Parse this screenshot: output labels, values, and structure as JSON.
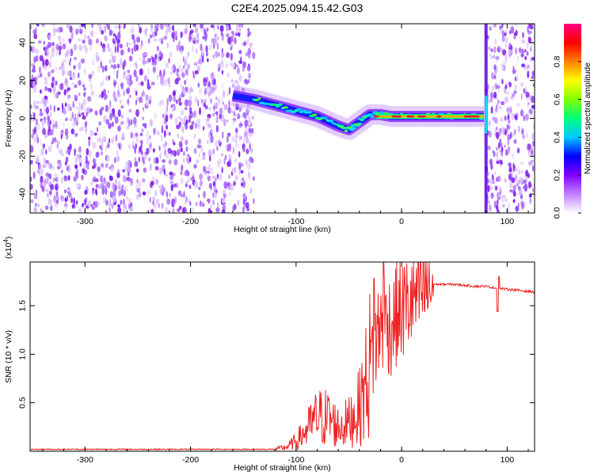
{
  "title": "C2E4.2025.094.15.42.G03",
  "chart_data": [
    {
      "type": "heatmap",
      "xlabel": "Height of straight line (km)",
      "ylabel": "Frequency (Hz)",
      "xlim": [
        -352,
        126
      ],
      "ylim": [
        -50,
        50
      ],
      "x_ticks": [
        -300,
        -200,
        -100,
        0,
        100
      ],
      "x_tick_labels": [
        "-300",
        "-200",
        "-100",
        "0",
        "100"
      ],
      "y_ticks": [
        -40,
        -20,
        0,
        20,
        40
      ],
      "y_tick_labels": [
        "-40",
        "-20",
        "0",
        "20",
        "40"
      ],
      "colorbar": {
        "label": "Normalized spectral amplitude",
        "range": [
          0,
          1
        ],
        "ticks": [
          0.0,
          0.2,
          0.4,
          0.6,
          0.8
        ],
        "tick_labels": [
          "0.0",
          "0.2",
          "0.4",
          "0.6",
          "0.8"
        ],
        "colors": [
          "#ffffff",
          "#c080ff",
          "#8000ff",
          "#0000ff",
          "#00c8ff",
          "#00ff80",
          "#80ff00",
          "#ffff00",
          "#ff8000",
          "#ff0000",
          "#ff0080"
        ]
      },
      "noise_regions": [
        [
          -352,
          -140
        ],
        [
          80,
          126
        ]
      ],
      "ridge": [
        {
          "x": -160,
          "y": 12
        },
        {
          "x": -140,
          "y": 10
        },
        {
          "x": -120,
          "y": 7
        },
        {
          "x": -100,
          "y": 4
        },
        {
          "x": -80,
          "y": 1
        },
        {
          "x": -60,
          "y": -4
        },
        {
          "x": -50,
          "y": -6
        },
        {
          "x": -40,
          "y": -2
        },
        {
          "x": -30,
          "y": 2
        },
        {
          "x": -20,
          "y": 2
        },
        {
          "x": -10,
          "y": 1
        },
        {
          "x": 0,
          "y": 1
        },
        {
          "x": 20,
          "y": 1
        },
        {
          "x": 40,
          "y": 1
        },
        {
          "x": 60,
          "y": 1
        },
        {
          "x": 78,
          "y": 1
        }
      ],
      "vertical_streak_x": 80,
      "grid": false
    },
    {
      "type": "line",
      "xlabel": "Height of straight line (km)",
      "ylabel": "SNR (10 * v/v)",
      "y_multiplier_label": "(x10",
      "y_multiplier_exp": "4",
      "xlim": [
        -352,
        126
      ],
      "ylim": [
        0,
        1.95
      ],
      "x_ticks": [
        -300,
        -200,
        -100,
        0,
        100
      ],
      "x_tick_labels": [
        "-300",
        "-200",
        "-100",
        "0",
        "100"
      ],
      "y_ticks": [
        0.5,
        1.0,
        1.5
      ],
      "y_tick_labels": [
        "0.5",
        "1.0",
        "1.5"
      ],
      "color": "#ee2222",
      "series": [
        {
          "x": [
            -352,
            -300,
            -250,
            -200,
            -150,
            -120,
            -110,
            -100,
            -90,
            -80,
            -70,
            -60,
            -50,
            -40,
            -35,
            -30,
            -25,
            -20,
            -15,
            -10,
            -5,
            0,
            5,
            10,
            15,
            20,
            25,
            30,
            35,
            40,
            50,
            60,
            70,
            80,
            90,
            100,
            110,
            126
          ],
          "values": [
            0.02,
            0.02,
            0.02,
            0.02,
            0.02,
            0.02,
            0.04,
            0.1,
            0.22,
            0.35,
            0.35,
            0.25,
            0.3,
            0.45,
            0.65,
            0.9,
            1.1,
            1.3,
            1.35,
            1.3,
            1.4,
            1.45,
            1.5,
            1.55,
            1.6,
            1.65,
            1.68,
            1.72,
            1.72,
            1.72,
            1.72,
            1.71,
            1.7,
            1.7,
            1.68,
            1.67,
            1.66,
            1.64
          ]
        }
      ],
      "peaks": [
        {
          "x": -17,
          "y": 1.95
        },
        {
          "x": -26,
          "y": 1.78
        },
        {
          "x": 92,
          "y": 1.8
        }
      ],
      "dip": {
        "x": 91,
        "y": 1.44
      },
      "grid": false
    }
  ]
}
